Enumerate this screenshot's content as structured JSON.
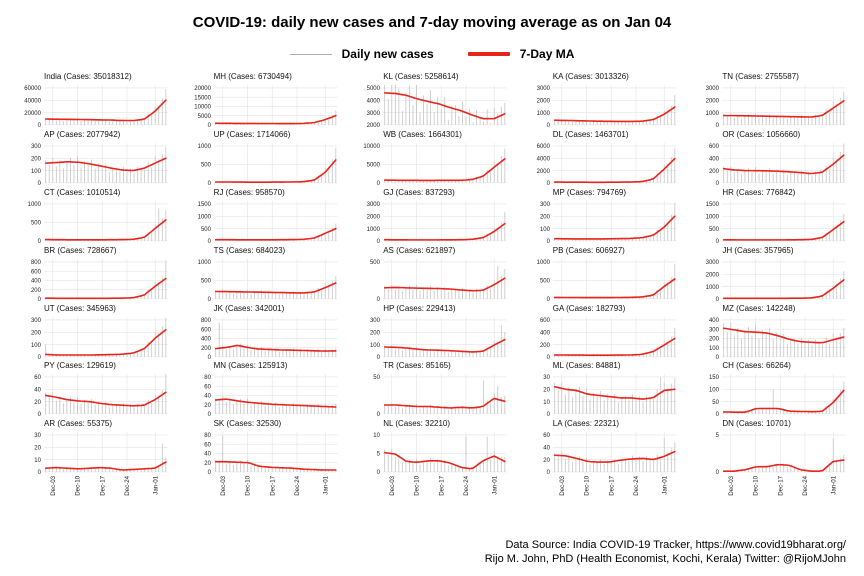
{
  "header": {
    "title": "COVID-19: daily new cases and 7-day moving average as on Jan 04"
  },
  "legend": {
    "daily_label": "Daily new cases",
    "ma_label": "7-Day MA",
    "daily_color": "#adadad",
    "ma_color": "#e8241c"
  },
  "footer": {
    "line1": "Data Source: India COVID-19 Tracker, https://www.covid19bharat.org/",
    "line2": "Rijo M. John, PhD (Health Economist, Kochi, Kerala) Twitter: @RijoMJohn"
  },
  "chart_data": {
    "type": "line",
    "description": "Small-multiple grid: gray bars = daily new cases, red line = 7-day moving average, Dec 01 - Jan 04",
    "n_days": 35,
    "x_tick_labels": [
      "Dec-03",
      "Dec-10",
      "Dec-17",
      "Dec-24",
      "Jan-01"
    ],
    "x_tick_positions": [
      2,
      9,
      16,
      23,
      31
    ],
    "grid_color": "#e3e3e3",
    "bar_color": "#c4c4c4",
    "ma_color": "#e8241c",
    "daily_noise": [
      1.15,
      0.9,
      1.25,
      0.8,
      1.1,
      0.7,
      1.05,
      1.2,
      0.85,
      1.3,
      0.75,
      1.1,
      0.95,
      1.25,
      0.8,
      1.15,
      0.9,
      1.2,
      0.7,
      1.05,
      1.1,
      0.85,
      1.25,
      0.9,
      1.15,
      0.8,
      1.2,
      1.0,
      0.9,
      1.3,
      0.85,
      1.35,
      1.1,
      1.25,
      1.45
    ],
    "charts": [
      {
        "title": "India (Cases: 35018312)",
        "ymin": 0,
        "yticks": [
          0,
          20000,
          40000,
          60000
        ],
        "ma": [
          9500,
          9200,
          9000,
          8800,
          8500,
          8200,
          7800,
          7200,
          7000,
          9000,
          22000,
          40000
        ],
        "spikes": {
          "34": 58000
        }
      },
      {
        "title": "MH (Cases: 6730494)",
        "ymin": 0,
        "yticks": [
          0,
          5000,
          10000,
          15000,
          20000
        ],
        "ma": [
          900,
          850,
          820,
          800,
          780,
          750,
          720,
          700,
          800,
          1200,
          2800,
          5000
        ],
        "spikes": {
          "34": 7800
        }
      },
      {
        "title": "KL (Cases: 5258614)",
        "ymin": 2000,
        "yticks": [
          2000,
          3000,
          4000,
          5000
        ],
        "ma": [
          4600,
          4550,
          4400,
          4100,
          3900,
          3700,
          3400,
          3150,
          2800,
          2500,
          2500,
          2900
        ],
        "spikes": {
          "3": 5300,
          "34": 3800
        }
      },
      {
        "title": "KA (Cases: 3013326)",
        "ymin": 0,
        "yticks": [
          0,
          1000,
          2000,
          3000
        ],
        "ma": [
          380,
          360,
          340,
          320,
          300,
          290,
          285,
          280,
          300,
          420,
          850,
          1450
        ],
        "spikes": {
          "34": 2450
        }
      },
      {
        "title": "TN (Cases: 2755587)",
        "ymin": 0,
        "yticks": [
          0,
          1000,
          2000,
          3000
        ],
        "ma": [
          760,
          750,
          740,
          720,
          700,
          690,
          670,
          650,
          640,
          750,
          1350,
          1950
        ],
        "spikes": {
          "34": 2700
        }
      },
      {
        "title": "AP (Cases: 2077942)",
        "ymin": 0,
        "yticks": [
          0,
          100,
          200,
          300
        ],
        "ma": [
          160,
          165,
          172,
          168,
          155,
          138,
          120,
          105,
          100,
          118,
          160,
          200
        ],
        "spikes": {}
      },
      {
        "title": "UP (Cases: 1714066)",
        "ymin": 0,
        "yticks": [
          0,
          500,
          1000
        ],
        "ma": [
          25,
          24,
          22,
          20,
          20,
          20,
          22,
          25,
          32,
          70,
          280,
          620
        ],
        "spikes": {
          "34": 950
        }
      },
      {
        "title": "WB (Cases: 1664301)",
        "ymin": 0,
        "yticks": [
          0,
          5000,
          10000
        ],
        "ma": [
          750,
          720,
          700,
          690,
          680,
          690,
          700,
          710,
          900,
          1800,
          4200,
          6500
        ],
        "spikes": {
          "34": 9300
        }
      },
      {
        "title": "DL (Cases: 1463701)",
        "ymin": 0,
        "yticks": [
          0,
          2000,
          4000,
          6000
        ],
        "ma": [
          130,
          120,
          110,
          105,
          100,
          110,
          120,
          135,
          220,
          600,
          2200,
          3950
        ],
        "spikes": {
          "34": 5600
        }
      },
      {
        "title": "OR (Cases: 1056660)",
        "ymin": 0,
        "yticks": [
          0,
          200,
          400,
          600
        ],
        "ma": [
          230,
          210,
          200,
          198,
          195,
          190,
          180,
          168,
          150,
          170,
          300,
          450
        ],
        "spikes": {
          "34": 640
        }
      },
      {
        "title": "CT (Cases: 1010514)",
        "ymin": 0,
        "yticks": [
          0,
          500,
          1000
        ],
        "ma": [
          35,
          33,
          30,
          30,
          30,
          30,
          32,
          35,
          42,
          90,
          330,
          570
        ],
        "spikes": {
          "32": 880
        }
      },
      {
        "title": "RJ (Cases: 958570)",
        "ymin": 0,
        "yticks": [
          0,
          500,
          1000,
          1500
        ],
        "ma": [
          50,
          48,
          46,
          45,
          45,
          45,
          48,
          52,
          62,
          110,
          300,
          500
        ],
        "spikes": {
          "34": 700
        }
      },
      {
        "title": "GJ (Cases: 837293)",
        "ymin": 0,
        "yticks": [
          0,
          1000,
          2000,
          3000
        ],
        "ma": [
          95,
          90,
          85,
          80,
          80,
          85,
          90,
          95,
          125,
          260,
          750,
          1400
        ],
        "spikes": {
          "34": 2350
        }
      },
      {
        "title": "MP (Cases: 794769)",
        "ymin": 0,
        "yticks": [
          0,
          100,
          200,
          300
        ],
        "ma": [
          18,
          17,
          16,
          16,
          16,
          17,
          18,
          20,
          26,
          45,
          110,
          200
        ],
        "spikes": {
          "34": 310
        }
      },
      {
        "title": "HR (Cases: 776842)",
        "ymin": 0,
        "yticks": [
          0,
          500,
          1000,
          1500
        ],
        "ma": [
          45,
          43,
          41,
          40,
          40,
          40,
          44,
          48,
          60,
          130,
          450,
          780
        ],
        "spikes": {
          "34": 1100
        }
      },
      {
        "title": "BR (Cases: 728667)",
        "ymin": 0,
        "yticks": [
          0,
          200,
          400,
          600,
          800
        ],
        "ma": [
          15,
          14,
          13,
          12,
          12,
          12,
          14,
          16,
          26,
          80,
          270,
          440
        ],
        "spikes": {
          "34": 830
        }
      },
      {
        "title": "TS (Cases: 684023)",
        "ymin": 0,
        "yticks": [
          0,
          500,
          1000
        ],
        "ma": [
          200,
          196,
          192,
          186,
          182,
          176,
          170,
          164,
          160,
          185,
          300,
          430
        ],
        "spikes": {
          "34": 620
        }
      },
      {
        "title": "AS (Cases: 621897)",
        "ymin": 0,
        "yticks": [
          0,
          500
        ],
        "ma": [
          150,
          156,
          150,
          146,
          142,
          140,
          134,
          120,
          110,
          116,
          190,
          280
        ],
        "spikes": {
          "32": 450
        }
      },
      {
        "title": "PB (Cases: 606927)",
        "ymin": 0,
        "yticks": [
          0,
          500,
          1000
        ],
        "ma": [
          40,
          38,
          37,
          36,
          35,
          36,
          38,
          42,
          52,
          100,
          330,
          540
        ],
        "spikes": {
          "34": 950
        }
      },
      {
        "title": "JH (Cases: 357965)",
        "ymin": 0,
        "yticks": [
          0,
          1000,
          2000,
          3000
        ],
        "ma": [
          50,
          48,
          46,
          45,
          45,
          48,
          52,
          58,
          75,
          220,
          850,
          1550
        ],
        "spikes": {
          "34": 2250
        }
      },
      {
        "title": "UT (Cases: 345963)",
        "ymin": 0,
        "yticks": [
          0,
          100,
          200,
          300
        ],
        "ma": [
          20,
          16,
          15,
          15,
          15,
          17,
          19,
          22,
          30,
          65,
          150,
          220
        ],
        "spikes": {
          "0": 100
        }
      },
      {
        "title": "JK (Cases: 342001)",
        "ymin": 0,
        "yticks": [
          0,
          200,
          400,
          600,
          800
        ],
        "ma": [
          180,
          205,
          250,
          200,
          170,
          160,
          150,
          145,
          140,
          132,
          126,
          130
        ],
        "spikes": {
          "1": 740
        }
      },
      {
        "title": "HP (Cases: 229413)",
        "ymin": 0,
        "yticks": [
          0,
          100,
          200,
          300
        ],
        "ma": [
          80,
          78,
          72,
          62,
          56,
          54,
          50,
          45,
          40,
          46,
          95,
          140
        ],
        "spikes": {
          "33": 260
        }
      },
      {
        "title": "GA (Cases: 182793)",
        "ymin": 0,
        "yticks": [
          0,
          200,
          400,
          600
        ],
        "ma": [
          32,
          30,
          29,
          28,
          28,
          28,
          29,
          32,
          42,
          85,
          190,
          300
        ],
        "spikes": {
          "34": 470
        }
      },
      {
        "title": "MZ (Cases: 142248)",
        "ymin": 0,
        "yticks": [
          0,
          100,
          200,
          300,
          400
        ],
        "ma": [
          310,
          292,
          272,
          268,
          258,
          228,
          190,
          165,
          158,
          152,
          185,
          215
        ],
        "spikes": {
          "0": 370
        }
      },
      {
        "title": "PY (Cases: 129619)",
        "ymin": 0,
        "yticks": [
          0,
          20,
          40,
          60
        ],
        "ma": [
          30,
          27,
          23,
          21,
          20,
          17,
          15,
          14,
          13,
          14,
          23,
          35
        ],
        "spikes": {
          "34": 65
        }
      },
      {
        "title": "MN (Cases: 125913)",
        "ymin": 0,
        "yticks": [
          0,
          20,
          40,
          60,
          80
        ],
        "ma": [
          30,
          32,
          28,
          25,
          23,
          21,
          20,
          19,
          18,
          17,
          16,
          15
        ],
        "spikes": {}
      },
      {
        "title": "TR (Cases: 85165)",
        "ymin": 0,
        "yticks": [
          0,
          50
        ],
        "ma": [
          12,
          12,
          11,
          10,
          10,
          9,
          8,
          9,
          8,
          10,
          21,
          17
        ],
        "spikes": {
          "28": 45,
          "32": 38
        }
      },
      {
        "title": "ML (Cases: 84881)",
        "ymin": 0,
        "yticks": [
          0,
          10,
          20,
          30
        ],
        "ma": [
          22,
          20,
          19,
          16,
          15,
          14,
          13,
          13,
          12,
          13,
          19,
          20
        ],
        "spikes": {
          "30": 30
        }
      },
      {
        "title": "CH (Cases: 66264)",
        "ymin": 0,
        "yticks": [
          0,
          50,
          100,
          150
        ],
        "ma": [
          8,
          7,
          7,
          22,
          22,
          22,
          11,
          10,
          9,
          10,
          45,
          95
        ],
        "spikes": {
          "14": 100,
          "34": 130
        }
      },
      {
        "title": "AR (Cases: 55375)",
        "ymin": 0,
        "yticks": [
          0,
          10,
          20,
          30
        ],
        "ma": [
          3,
          3.5,
          3,
          2.5,
          3,
          3.5,
          3,
          1.5,
          2,
          2.5,
          3,
          8
        ],
        "spikes": {
          "33": 23
        }
      },
      {
        "title": "SK (Cases: 32530)",
        "ymin": 0,
        "yticks": [
          0,
          20,
          40,
          60,
          80
        ],
        "ma": [
          22,
          22,
          21,
          20,
          12,
          10,
          9,
          8,
          6,
          5,
          4,
          4
        ],
        "spikes": {
          "2": 78
        }
      },
      {
        "title": "NL (Cases: 32210)",
        "ymin": 0,
        "yticks": [
          0,
          5,
          10
        ],
        "ma": [
          5.2,
          4.8,
          2.8,
          2.6,
          3,
          3,
          2.4,
          1.2,
          0.8,
          3,
          4.3,
          2.8
        ],
        "spikes": {
          "23": 9.5,
          "29": 9.5
        }
      },
      {
        "title": "LA (Cases: 22321)",
        "ymin": 0,
        "yticks": [
          0,
          20,
          40,
          60
        ],
        "ma": [
          27,
          26,
          22,
          17,
          16,
          16,
          19,
          21,
          22,
          20,
          25,
          33
        ],
        "spikes": {
          "31": 55
        }
      },
      {
        "title": "DN (Cases: 10701)",
        "ymin": 0,
        "yticks": [
          0,
          5
        ],
        "ma": [
          0.1,
          0.1,
          0.3,
          0.7,
          0.7,
          1,
          0.9,
          0.3,
          0.1,
          0.1,
          1.4,
          1.6
        ],
        "spikes": {
          "31": 4.5
        }
      }
    ]
  }
}
